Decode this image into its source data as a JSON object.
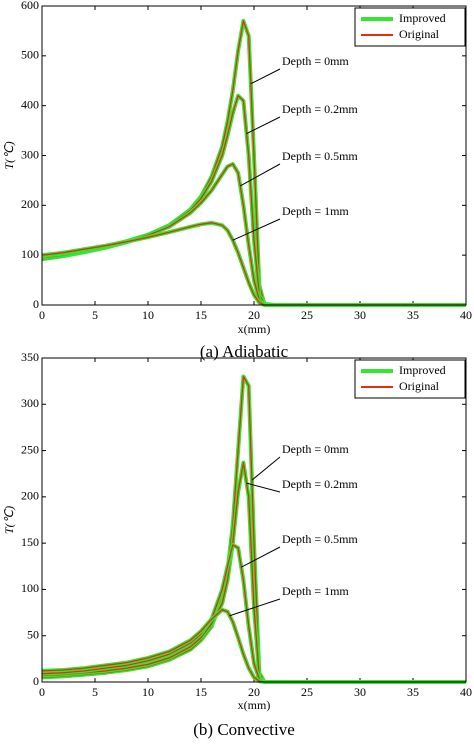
{
  "chart_data": [
    {
      "type": "line",
      "caption": "(a) Adiabatic",
      "xlabel": "x(mm)",
      "ylabel": "T(℃)",
      "xlim": [
        0,
        40
      ],
      "ylim": [
        0,
        600
      ],
      "xticks": [
        0,
        5,
        10,
        15,
        20,
        25,
        30,
        35,
        40
      ],
      "yticks": [
        0,
        100,
        200,
        300,
        400,
        500,
        600
      ],
      "series": [
        {
          "name": "Improved",
          "color": "#33e633"
        },
        {
          "name": "Original",
          "color": "#e03010"
        }
      ],
      "x": [
        0,
        2,
        4,
        6,
        8,
        10,
        12,
        14,
        15,
        16,
        17,
        17.5,
        18,
        18.5,
        19,
        19.5,
        20,
        20.5,
        21,
        22,
        25,
        30,
        35,
        40
      ],
      "curves": [
        {
          "label": "Depth = 0mm",
          "values": [
            92,
            98,
            106,
            115,
            126,
            140,
            160,
            192,
            218,
            258,
            318,
            368,
            430,
            510,
            570,
            540,
            300,
            40,
            0,
            0,
            0,
            0,
            0,
            0
          ]
        },
        {
          "label": "Depth = 0.2mm",
          "values": [
            95,
            100,
            108,
            117,
            128,
            141,
            160,
            190,
            214,
            248,
            300,
            340,
            385,
            420,
            410,
            300,
            130,
            20,
            2,
            0,
            0,
            0,
            0,
            0
          ]
        },
        {
          "label": "Depth = 0.5mm",
          "values": [
            98,
            103,
            110,
            118,
            128,
            140,
            157,
            185,
            205,
            230,
            262,
            278,
            283,
            265,
            200,
            120,
            50,
            10,
            0,
            0,
            0,
            0,
            0,
            0
          ]
        },
        {
          "label": "Depth = 1mm",
          "values": [
            100,
            105,
            112,
            119,
            127,
            136,
            146,
            157,
            162,
            165,
            160,
            150,
            130,
            105,
            75,
            45,
            20,
            5,
            0,
            0,
            0,
            0,
            0,
            0
          ]
        }
      ]
    },
    {
      "type": "line",
      "caption": "(b) Convective",
      "xlabel": "x(mm)",
      "ylabel": "T(℃)",
      "xlim": [
        0,
        40
      ],
      "ylim": [
        0,
        350
      ],
      "xticks": [
        0,
        5,
        10,
        15,
        20,
        25,
        30,
        35,
        40
      ],
      "yticks": [
        0,
        50,
        100,
        150,
        200,
        250,
        300,
        350
      ],
      "series": [
        {
          "name": "Improved",
          "color": "#33e633"
        },
        {
          "name": "Original",
          "color": "#e03010"
        }
      ],
      "x": [
        0,
        2,
        4,
        6,
        8,
        10,
        12,
        14,
        15,
        16,
        17,
        17.5,
        18,
        18.5,
        19,
        19.5,
        20,
        20.5,
        21,
        22,
        25,
        30,
        35,
        40
      ],
      "curves": [
        {
          "label": "Depth = 0mm",
          "values": [
            5,
            6,
            8,
            10,
            13,
            17,
            24,
            35,
            45,
            60,
            90,
            120,
            170,
            250,
            330,
            320,
            150,
            10,
            0,
            0,
            0,
            0,
            0,
            0
          ]
        },
        {
          "label": "Depth = 0.2mm",
          "values": [
            7,
            8,
            10,
            12,
            15,
            19,
            26,
            38,
            48,
            63,
            85,
            110,
            150,
            205,
            237,
            200,
            80,
            5,
            0,
            0,
            0,
            0,
            0,
            0
          ]
        },
        {
          "label": "Depth = 0.5mm",
          "values": [
            9,
            10,
            12,
            15,
            18,
            23,
            30,
            42,
            52,
            68,
            100,
            125,
            148,
            145,
            110,
            60,
            20,
            3,
            0,
            0,
            0,
            0,
            0,
            0
          ]
        },
        {
          "label": "Depth = 1mm",
          "values": [
            12,
            13,
            15,
            18,
            21,
            26,
            33,
            45,
            55,
            68,
            78,
            76,
            65,
            48,
            30,
            15,
            5,
            1,
            0,
            0,
            0,
            0,
            0,
            0
          ]
        }
      ]
    }
  ]
}
